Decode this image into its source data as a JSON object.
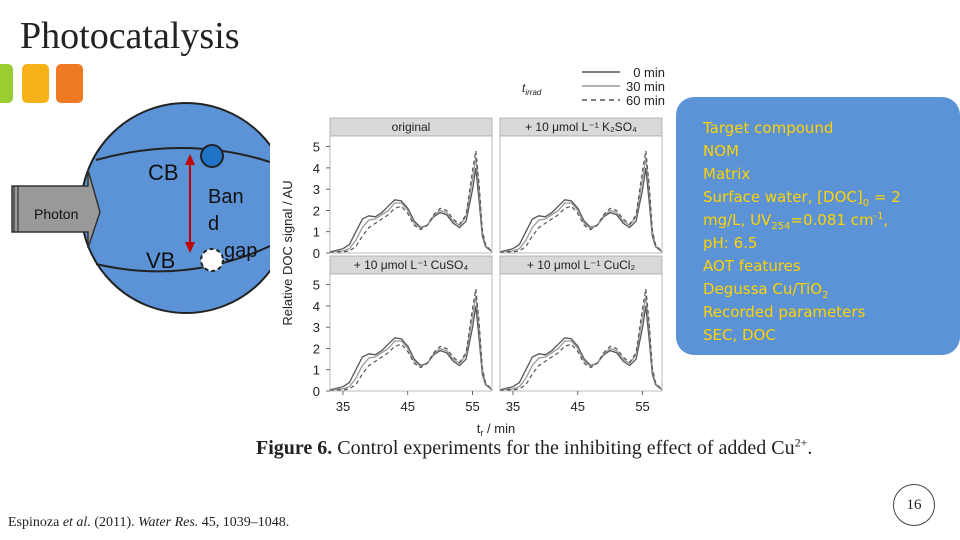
{
  "title": "Photocatalysis",
  "diagram": {
    "cb": "CB",
    "vb": "VB",
    "photon": "Photon",
    "band_gap": [
      "Ban",
      "d",
      "gap"
    ]
  },
  "chart_data": {
    "type": "line",
    "legend_title": "t_irrad",
    "legend": [
      {
        "label": "0 min",
        "style": "solid",
        "color": "#555555"
      },
      {
        "label": "30 min",
        "style": "solid",
        "color": "#999999"
      },
      {
        "label": "60 min",
        "style": "dashed",
        "color": "#555555"
      }
    ],
    "panels": [
      {
        "label": "original"
      },
      {
        "label": "+ 10 μmol L⁻¹ K₂SO₄"
      },
      {
        "label": "+ 10 μmol L⁻¹ CuSO₄"
      },
      {
        "label": "+ 10 μmol L⁻¹ CuCl₂"
      }
    ],
    "ylabel": "Relative DOC signal / AU",
    "xlabel": "t_r / min",
    "yticks": [
      "0",
      "1",
      "2",
      "3",
      "4",
      "5"
    ],
    "xticks": [
      "35",
      "45",
      "55"
    ],
    "ylim": [
      0,
      5.5
    ],
    "xlim": [
      33,
      58
    ],
    "x": [
      33,
      35,
      36,
      37,
      38,
      39,
      40,
      41,
      42,
      43,
      44,
      45,
      46,
      47,
      48,
      49,
      50,
      51,
      52,
      53,
      54,
      55,
      55.5,
      56,
      56.5,
      57,
      58
    ],
    "series": [
      {
        "name": "0 min",
        "values": [
          0.05,
          0.2,
          0.4,
          1.0,
          1.6,
          1.75,
          1.7,
          1.9,
          2.2,
          2.5,
          2.45,
          2.1,
          1.5,
          1.2,
          1.3,
          1.7,
          1.9,
          1.8,
          1.4,
          1.2,
          1.5,
          3.0,
          4.0,
          2.5,
          0.8,
          0.3,
          0.05
        ]
      },
      {
        "name": "30 min",
        "values": [
          0.05,
          0.1,
          0.2,
          0.6,
          1.2,
          1.55,
          1.6,
          1.8,
          2.0,
          2.35,
          2.35,
          2.0,
          1.4,
          1.15,
          1.3,
          1.75,
          2.0,
          1.9,
          1.5,
          1.3,
          1.7,
          3.5,
          4.5,
          3.0,
          1.0,
          0.35,
          0.05
        ]
      },
      {
        "name": "60 min",
        "values": [
          0.05,
          0.05,
          0.1,
          0.3,
          0.8,
          1.2,
          1.4,
          1.6,
          1.8,
          2.1,
          2.2,
          1.85,
          1.3,
          1.1,
          1.3,
          1.8,
          2.1,
          2.0,
          1.6,
          1.35,
          1.8,
          3.9,
          4.8,
          3.3,
          1.1,
          0.4,
          0.05
        ]
      }
    ]
  },
  "info_box": {
    "line1": "Target compound",
    "line2": "NOM",
    "line3": "Matrix",
    "line4_main": "Surface water, [DOC]",
    "line4_sub": "0",
    "line4_end": " = 2",
    "line5_main": "mg/L, UV",
    "line5_sub": "254",
    "line5_mid": "=0.081 cm",
    "line5_sup": "-1",
    "line5_end": ",",
    "line6": "pH: 6.5",
    "line7": "AOT features",
    "line8_main": "Degussa Cu/TiO",
    "line8_sub": "2",
    "line9": "Recorded parameters",
    "line10": "SEC, DOC"
  },
  "caption": {
    "bold": "Figure 6.",
    "text": " Control experiments for the inhibiting effect of added Cu",
    "sup": "2+",
    "end": "."
  },
  "reference": {
    "authors": "Espinoza ",
    "etal": "et al.",
    "year": " (2011). ",
    "journal": "Water Res.",
    "rest": " 45, 1039–1048."
  },
  "page_number": "16"
}
